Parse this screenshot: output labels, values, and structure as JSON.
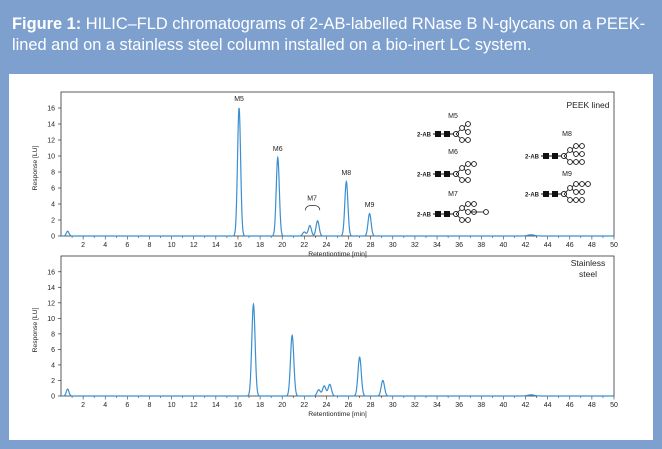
{
  "caption": {
    "label": "Figure 1:",
    "text": "HILIC–FLD chromatograms of 2-AB-labelled RNase B N-glycans on a PEEK-lined and on a stainless steel column installed on a bio-inert LC system."
  },
  "colors": {
    "frame": "#7ea0cf",
    "trace": "#3b8fd0",
    "glycan": "#111111"
  },
  "chart_data": [
    {
      "type": "line",
      "title": "PEEK  lined",
      "xlabel": "Retentiontime [min]",
      "ylabel": "Response [LU]",
      "xlim": [
        0,
        50
      ],
      "ylim": [
        0,
        17
      ],
      "xticks": [
        2,
        4,
        6,
        8,
        10,
        12,
        14,
        16,
        18,
        20,
        22,
        24,
        26,
        28,
        30,
        32,
        34,
        36,
        38,
        40,
        42,
        44,
        46,
        48,
        50
      ],
      "yticks": [
        0,
        2,
        4,
        6,
        8,
        10,
        12,
        14,
        16
      ],
      "peaks": [
        {
          "t": 0.6,
          "h": 0.6,
          "w": 0.12
        },
        {
          "t": 16.1,
          "h": 16.0,
          "w": 0.14
        },
        {
          "t": 19.6,
          "h": 9.8,
          "w": 0.14
        },
        {
          "t": 22.0,
          "h": 0.5,
          "w": 0.15
        },
        {
          "t": 22.5,
          "h": 1.3,
          "w": 0.14
        },
        {
          "t": 23.2,
          "h": 1.9,
          "w": 0.14
        },
        {
          "t": 25.8,
          "h": 6.8,
          "w": 0.14
        },
        {
          "t": 27.9,
          "h": 2.8,
          "w": 0.14
        },
        {
          "t": 42.5,
          "h": 0.15,
          "w": 0.3
        }
      ],
      "peak_labels": [
        {
          "text": "M5",
          "t": 16.1,
          "y": 16.6
        },
        {
          "text": "M6",
          "t": 19.6,
          "y": 10.4
        },
        {
          "text": "M7",
          "t": 22.7,
          "y": 4.2
        },
        {
          "text": "M8",
          "t": 25.8,
          "y": 7.4
        },
        {
          "text": "M9",
          "t": 27.9,
          "y": 3.4
        }
      ],
      "glycans": [
        {
          "name": "M5",
          "tag": "2-AB",
          "variant": 0
        },
        {
          "name": "M6",
          "tag": "2-AB",
          "variant": 1
        },
        {
          "name": "M7",
          "tag": "2-AB",
          "variant": 2
        },
        {
          "name": "M8",
          "tag": "2-AB",
          "variant": 3
        },
        {
          "name": "M9",
          "tag": "2-AB",
          "variant": 4
        }
      ]
    },
    {
      "type": "line",
      "title": "Stainless steel",
      "title_lines": [
        "Stainless",
        "steel"
      ],
      "xlabel": "Retentiontime [min]",
      "ylabel": "Response [LU]",
      "xlim": [
        0,
        50
      ],
      "ylim": [
        0,
        17
      ],
      "xticks": [
        2,
        4,
        6,
        8,
        10,
        12,
        14,
        16,
        18,
        20,
        22,
        24,
        26,
        28,
        30,
        32,
        34,
        36,
        38,
        40,
        42,
        44,
        46,
        48,
        50
      ],
      "yticks": [
        0,
        2,
        4,
        6,
        8,
        10,
        12,
        14,
        16
      ],
      "peaks": [
        {
          "t": 0.6,
          "h": 0.9,
          "w": 0.12
        },
        {
          "t": 17.4,
          "h": 11.8,
          "w": 0.15
        },
        {
          "t": 20.9,
          "h": 7.8,
          "w": 0.15
        },
        {
          "t": 23.3,
          "h": 0.8,
          "w": 0.15
        },
        {
          "t": 23.8,
          "h": 1.3,
          "w": 0.15
        },
        {
          "t": 24.3,
          "h": 1.5,
          "w": 0.15
        },
        {
          "t": 27.0,
          "h": 5.0,
          "w": 0.15
        },
        {
          "t": 29.1,
          "h": 2.0,
          "w": 0.15
        },
        {
          "t": 42.5,
          "h": 0.15,
          "w": 0.3
        }
      ]
    }
  ]
}
